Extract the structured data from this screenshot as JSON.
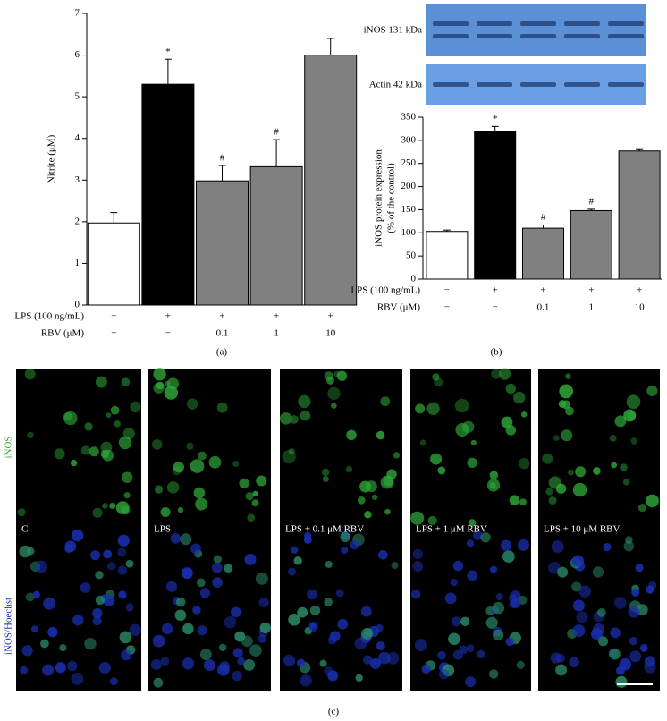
{
  "chart_data": [
    {
      "type": "bar",
      "label": "(a)",
      "ylabel": [
        "Nitrite (μM)"
      ],
      "categories": [
        null,
        null,
        null,
        null,
        null
      ],
      "values": [
        1.97,
        5.3,
        2.98,
        3.32,
        6.0
      ],
      "errors": [
        0.25,
        0.6,
        0.37,
        0.65,
        0.4
      ],
      "significance": [
        null,
        "*",
        "#",
        "#",
        null
      ],
      "colors": [
        "#ffffff",
        "#000000",
        "#808080",
        "#808080",
        "#808080"
      ],
      "ylim": [
        0,
        7
      ],
      "yticks": [
        0,
        1,
        2,
        3,
        4,
        5,
        6,
        7
      ],
      "condition_rows": [
        {
          "label": "LPS (100 ng/mL)",
          "values": [
            "−",
            "+",
            "+",
            "+",
            "+"
          ]
        },
        {
          "label": "RBV (μM)",
          "values": [
            "−",
            "−",
            "0.1",
            "1",
            "10"
          ]
        }
      ]
    },
    {
      "type": "bar",
      "label": "(b)",
      "ylabel": [
        "iNOS protein expression",
        "(% of the control)"
      ],
      "categories": [
        null,
        null,
        null,
        null,
        null
      ],
      "values": [
        103,
        320,
        110,
        148,
        277
      ],
      "errors": [
        3,
        10,
        7,
        3,
        3
      ],
      "significance": [
        null,
        "*",
        "#",
        "#",
        null
      ],
      "colors": [
        "#ffffff",
        "#000000",
        "#808080",
        "#808080",
        "#808080"
      ],
      "ylim": [
        0,
        350
      ],
      "yticks": [
        0,
        50,
        100,
        150,
        200,
        250,
        300,
        350
      ],
      "condition_rows": [
        {
          "label": "LPS (100 ng/mL)",
          "values": [
            "−",
            "+",
            "+",
            "+",
            "+"
          ]
        },
        {
          "label": "RBV (μM)",
          "values": [
            "−",
            "−",
            "0.1",
            "1",
            "10"
          ]
        }
      ],
      "blots": [
        "iNOS 131 kDa",
        "Actin 42 kDa"
      ]
    }
  ],
  "panel_c": {
    "label": "(c)",
    "row_labels": [
      "iNOS",
      "iNOS/Hoechst"
    ],
    "columns": [
      "C",
      "LPS",
      "LPS + 0.1 μM RBV",
      "LPS + 1 μM RBV",
      "LPS + 10 μM RBV"
    ]
  }
}
